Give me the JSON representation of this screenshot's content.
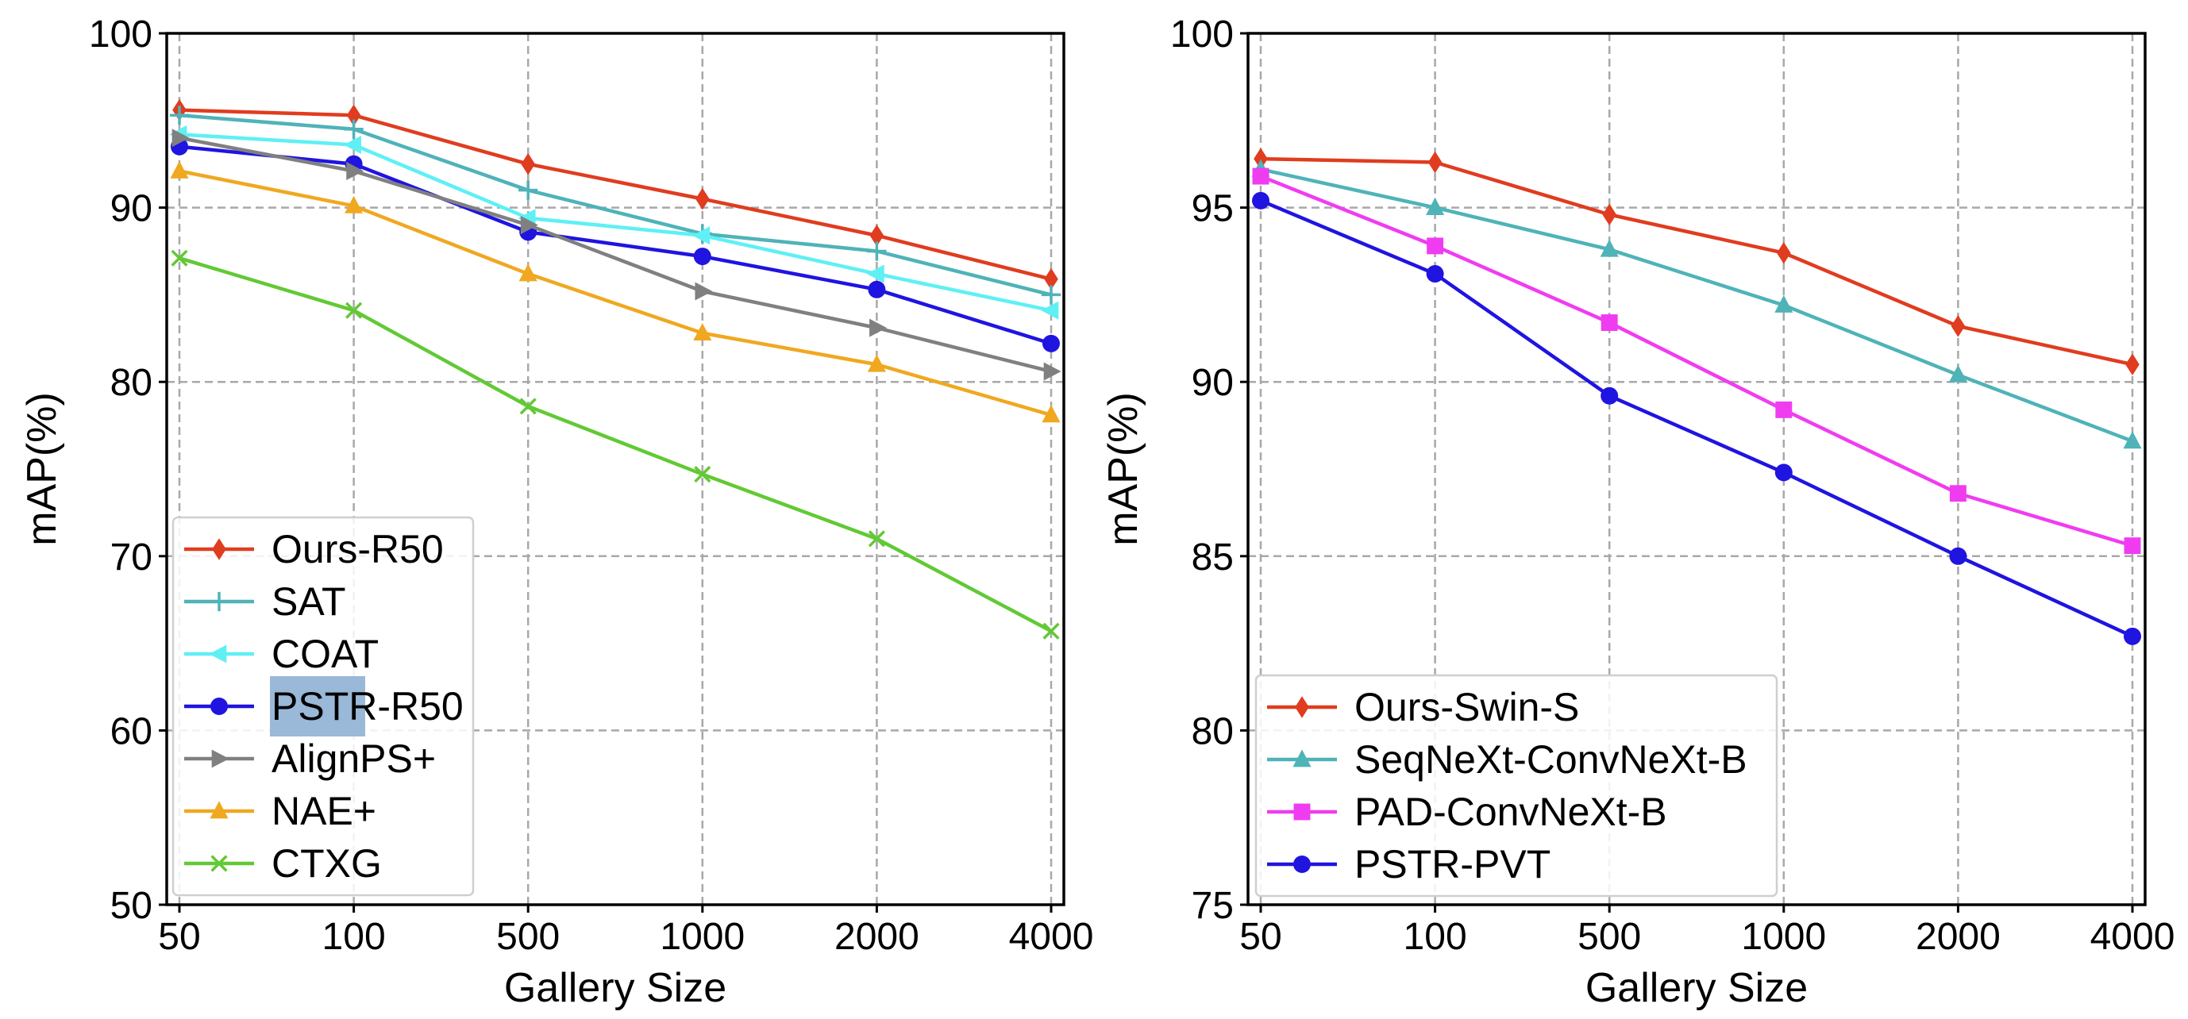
{
  "chart_data": [
    {
      "type": "line",
      "title": "",
      "xlabel": "Gallery Size",
      "ylabel": "mAP(%)",
      "categories": [
        "50",
        "100",
        "500",
        "1000",
        "2000",
        "4000"
      ],
      "ylim": [
        50,
        100
      ],
      "yticks": [
        50,
        60,
        70,
        80,
        90,
        100
      ],
      "grid": true,
      "legend_position": "lower-left",
      "highlight_text": "PSTR",
      "series": [
        {
          "name": "Ours-R50",
          "color": "#e03c1f",
          "marker": "diamond",
          "values": [
            95.6,
            95.3,
            92.5,
            90.5,
            88.4,
            85.9
          ]
        },
        {
          "name": "SAT",
          "color": "#4fb3b8",
          "marker": "plus",
          "values": [
            95.3,
            94.5,
            91.0,
            88.5,
            87.5,
            85.0
          ]
        },
        {
          "name": "COAT",
          "color": "#5ef0f5",
          "marker": "triangle-left",
          "values": [
            94.2,
            93.6,
            89.4,
            88.4,
            86.2,
            84.1
          ]
        },
        {
          "name": "PSTR-R50",
          "color": "#1f14e0",
          "marker": "circle",
          "values": [
            93.5,
            92.5,
            88.6,
            87.2,
            85.3,
            82.2
          ]
        },
        {
          "name": "AlignPS+",
          "color": "#808080",
          "marker": "triangle-right",
          "values": [
            94.0,
            92.1,
            89.0,
            85.2,
            83.1,
            80.6
          ]
        },
        {
          "name": "NAE+",
          "color": "#f0a820",
          "marker": "triangle-up",
          "values": [
            92.1,
            90.1,
            86.2,
            82.8,
            81.0,
            78.1
          ]
        },
        {
          "name": "CTXG",
          "color": "#62c935",
          "marker": "x",
          "values": [
            87.1,
            84.1,
            78.6,
            74.7,
            71.0,
            65.7
          ]
        }
      ]
    },
    {
      "type": "line",
      "title": "",
      "xlabel": "Gallery Size",
      "ylabel": "mAP(%)",
      "categories": [
        "50",
        "100",
        "500",
        "1000",
        "2000",
        "4000"
      ],
      "ylim": [
        75,
        100
      ],
      "yticks": [
        75,
        80,
        85,
        90,
        95,
        100
      ],
      "grid": true,
      "legend_position": "lower-left",
      "series": [
        {
          "name": "Ours-Swin-S",
          "color": "#e03c1f",
          "marker": "diamond",
          "values": [
            96.4,
            96.3,
            94.8,
            93.7,
            91.6,
            90.5
          ]
        },
        {
          "name": "SeqNeXt-ConvNeXt-B",
          "color": "#4fb3b8",
          "marker": "triangle-up",
          "values": [
            96.1,
            95.0,
            93.8,
            92.2,
            90.2,
            88.3
          ]
        },
        {
          "name": "PAD-ConvNeXt-B",
          "color": "#f03cf0",
          "marker": "square",
          "values": [
            95.9,
            93.9,
            91.7,
            89.2,
            86.8,
            85.3
          ]
        },
        {
          "name": "PSTR-PVT",
          "color": "#1f14e0",
          "marker": "circle",
          "values": [
            95.2,
            93.1,
            89.6,
            87.4,
            85.0,
            82.7
          ]
        }
      ]
    }
  ]
}
